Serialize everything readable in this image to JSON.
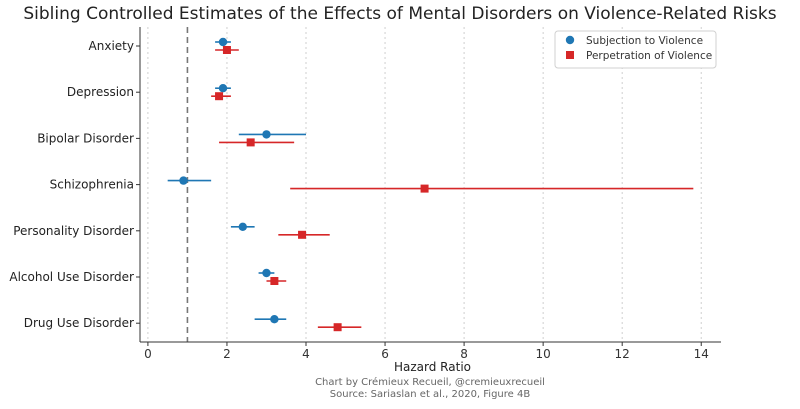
{
  "chart_data": {
    "type": "scatter",
    "title": "Sibling Controlled Estimates of the Effects of Mental Disorders on Violence-Related Risks",
    "xlabel": "Hazard Ratio",
    "ylabel": "",
    "xlim": [
      -0.2,
      14.5
    ],
    "xticks": [
      0,
      2,
      4,
      6,
      8,
      10,
      12,
      14
    ],
    "reference_line": 1,
    "grid": "vertical dotted",
    "legend_position": "top-right",
    "categories": [
      "Anxiety",
      "Depression",
      "Bipolar Disorder",
      "Schizophrenia",
      "Personality Disorder",
      "Alcohol Use Disorder",
      "Drug Use Disorder"
    ],
    "series": [
      {
        "name": "Subjection to Violence",
        "color": "#1f77b4",
        "marker": "circle",
        "values": [
          1.9,
          1.9,
          3.0,
          0.9,
          2.4,
          3.0,
          3.2
        ],
        "ci_low": [
          1.7,
          1.7,
          2.3,
          0.5,
          2.1,
          2.8,
          2.7
        ],
        "ci_high": [
          2.1,
          2.1,
          4.0,
          1.6,
          2.7,
          3.2,
          3.5
        ]
      },
      {
        "name": "Perpetration of Violence",
        "color": "#d62728",
        "marker": "square",
        "values": [
          2.0,
          1.8,
          2.6,
          7.0,
          3.9,
          3.2,
          4.8
        ],
        "ci_low": [
          1.7,
          1.6,
          1.8,
          3.6,
          3.3,
          3.0,
          4.3
        ],
        "ci_high": [
          2.3,
          2.1,
          3.7,
          13.8,
          4.6,
          3.5,
          5.4
        ]
      }
    ]
  },
  "credit": {
    "line1": "Chart by Crémieux Recueil, @cremieuxrecueil",
    "line2": "Source: Sariaslan et al., 2020, Figure 4B"
  }
}
